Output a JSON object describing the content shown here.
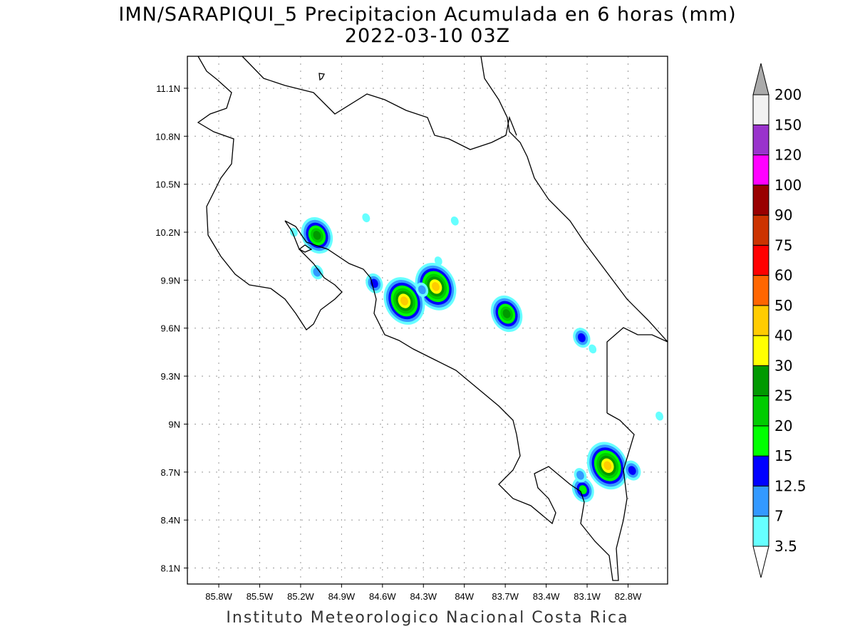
{
  "title": "IMN/SARAPIQUI_5 Precipitacion Acumulada en 6 horas (mm)",
  "subtitle": "2022-03-10 03Z",
  "footer": "Instituto Meteorologico Nacional Costa Rica",
  "map": {
    "lon_range": [
      -86.03,
      -82.51
    ],
    "lat_range": [
      8.0,
      11.3
    ],
    "lon_ticks": [
      {
        "v": -85.8,
        "label": "85.8W"
      },
      {
        "v": -85.5,
        "label": "85.5W"
      },
      {
        "v": -85.2,
        "label": "85.2W"
      },
      {
        "v": -84.9,
        "label": "84.9W"
      },
      {
        "v": -84.6,
        "label": "84.6W"
      },
      {
        "v": -84.3,
        "label": "84.3W"
      },
      {
        "v": -84.0,
        "label": "84W"
      },
      {
        "v": -83.7,
        "label": "83.7W"
      },
      {
        "v": -83.4,
        "label": "83.4W"
      },
      {
        "v": -83.1,
        "label": "83.1W"
      },
      {
        "v": -82.8,
        "label": "82.8W"
      }
    ],
    "lat_ticks": [
      {
        "v": 11.1,
        "label": "11.1N"
      },
      {
        "v": 10.8,
        "label": "10.8N"
      },
      {
        "v": 10.5,
        "label": "10.5N"
      },
      {
        "v": 10.2,
        "label": "10.2N"
      },
      {
        "v": 9.9,
        "label": "9.9N"
      },
      {
        "v": 9.6,
        "label": "9.6N"
      },
      {
        "v": 9.3,
        "label": "9.3N"
      },
      {
        "v": 9.0,
        "label": "9N"
      },
      {
        "v": 8.7,
        "label": "8.7N"
      },
      {
        "v": 8.4,
        "label": "8.4N"
      },
      {
        "v": 8.1,
        "label": "8.1N"
      }
    ],
    "precip_cells": [
      {
        "lon": -85.08,
        "lat": 10.18,
        "max": 25
      },
      {
        "lon": -84.21,
        "lat": 9.86,
        "max": 40
      },
      {
        "lon": -84.44,
        "lat": 9.77,
        "max": 40
      },
      {
        "lon": -84.31,
        "lat": 9.84,
        "max": 7
      },
      {
        "lon": -84.66,
        "lat": 9.88,
        "max": 12.5
      },
      {
        "lon": -83.69,
        "lat": 9.69,
        "max": 25
      },
      {
        "lon": -82.95,
        "lat": 8.74,
        "max": 40
      },
      {
        "lon": -83.13,
        "lat": 8.59,
        "max": 15
      },
      {
        "lon": -83.15,
        "lat": 8.68,
        "max": 7
      },
      {
        "lon": -82.77,
        "lat": 8.71,
        "max": 12.5
      },
      {
        "lon": -83.14,
        "lat": 9.54,
        "max": 12.5
      },
      {
        "lon": -85.08,
        "lat": 9.95,
        "max": 7
      },
      {
        "lon": -84.72,
        "lat": 10.29,
        "max": 3.5
      },
      {
        "lon": -84.07,
        "lat": 10.27,
        "max": 3.5
      },
      {
        "lon": -82.57,
        "lat": 9.05,
        "max": 3.5
      },
      {
        "lon": -83.06,
        "lat": 9.47,
        "max": 3.5
      },
      {
        "lon": -85.25,
        "lat": 10.2,
        "max": 3.5
      },
      {
        "lon": -84.19,
        "lat": 10.02,
        "max": 3.5
      }
    ]
  },
  "colorbar": {
    "levels": [
      "3.5",
      "7",
      "12.5",
      "15",
      "20",
      "25",
      "30",
      "40",
      "50",
      "60",
      "75",
      "90",
      "100",
      "120",
      "150",
      "200"
    ],
    "colors": [
      "#66ffff",
      "#3399ff",
      "#0000ff",
      "#00ff00",
      "#00cc00",
      "#009900",
      "#ffff00",
      "#ffcc00",
      "#ff6600",
      "#ff0000",
      "#cc3300",
      "#990000",
      "#ff00ff",
      "#9933cc",
      "#f2f2f2"
    ],
    "over_color": "#aaaaaa",
    "under_color": "#ffffff"
  }
}
